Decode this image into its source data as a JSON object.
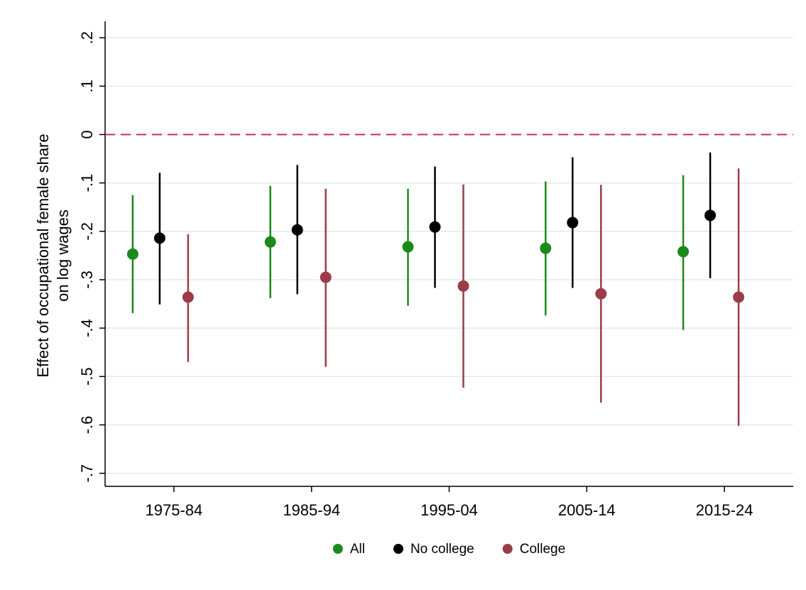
{
  "chart_data": {
    "type": "errorbar",
    "ylabel": [
      "Effect of occupational female share",
      "on log wages"
    ],
    "categories": [
      "1975-84",
      "1985-94",
      "1995-04",
      "2005-14",
      "2015-24"
    ],
    "series": [
      {
        "name": "All",
        "color": "#1b8a1b",
        "values": [
          -0.247,
          -0.222,
          -0.232,
          -0.235,
          -0.242
        ],
        "lower": [
          -0.369,
          -0.338,
          -0.354,
          -0.374,
          -0.404
        ],
        "upper": [
          -0.125,
          -0.106,
          -0.112,
          -0.097,
          -0.084
        ]
      },
      {
        "name": "No college",
        "color": "#000000",
        "values": [
          -0.214,
          -0.197,
          -0.191,
          -0.182,
          -0.167
        ],
        "lower": [
          -0.351,
          -0.33,
          -0.317,
          -0.317,
          -0.297
        ],
        "upper": [
          -0.079,
          -0.063,
          -0.066,
          -0.047,
          -0.037
        ]
      },
      {
        "name": "College",
        "color": "#9b3c48",
        "values": [
          -0.336,
          -0.295,
          -0.313,
          -0.329,
          -0.336
        ],
        "lower": [
          -0.47,
          -0.48,
          -0.523,
          -0.554,
          -0.602
        ],
        "upper": [
          -0.206,
          -0.112,
          -0.103,
          -0.104,
          -0.07
        ]
      }
    ],
    "ylim": [
      -0.727,
      0.234
    ],
    "yticks": [
      {
        "value": 0.2,
        "label": ".2"
      },
      {
        "value": 0.1,
        "label": ".1"
      },
      0,
      {
        "value": -0.1,
        "label": "-.1"
      },
      {
        "value": -0.2,
        "label": "-.2"
      },
      {
        "value": -0.3,
        "label": "-.3"
      },
      {
        "value": -0.4,
        "label": "-.4"
      },
      {
        "value": -0.5,
        "label": "-.5"
      },
      {
        "value": -0.6,
        "label": "-.6"
      },
      {
        "value": -0.7,
        "label": "-.7"
      }
    ],
    "reference_line": {
      "value": 0,
      "color": "#c8304a"
    },
    "grid": true
  }
}
